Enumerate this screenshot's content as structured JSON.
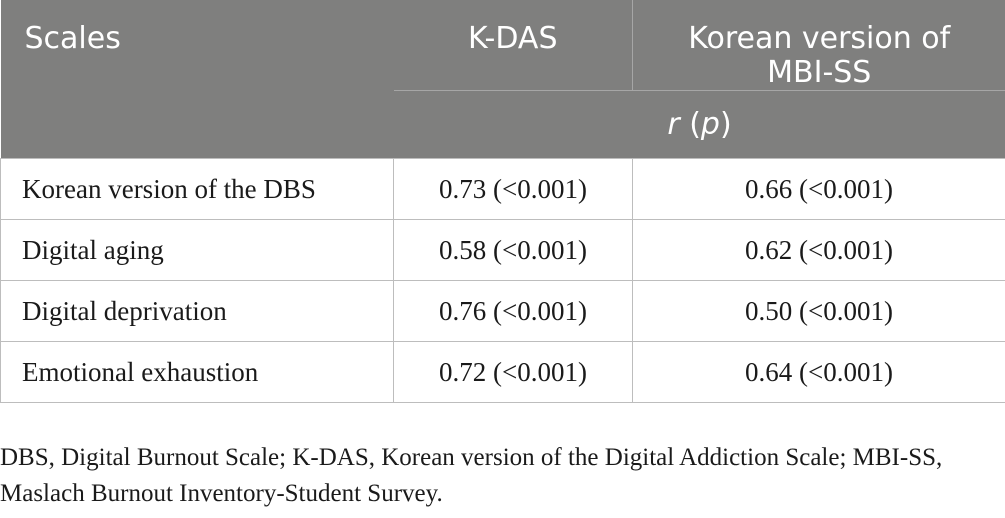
{
  "table": {
    "headers": {
      "scales": "Scales",
      "kdas": "K-DAS",
      "mbi_line1": "Korean version of",
      "mbi_line2": "MBI-SS",
      "stat_r": "r",
      "stat_open": " (",
      "stat_p": "p",
      "stat_close": ")"
    },
    "rows": [
      {
        "label": "Korean version of the DBS",
        "kdas": "0.73 (<0.001)",
        "mbi": "0.66 (<0.001)"
      },
      {
        "label": "Digital aging",
        "kdas": "0.58 (<0.001)",
        "mbi": "0.62 (<0.001)"
      },
      {
        "label": "Digital deprivation",
        "kdas": "0.76 (<0.001)",
        "mbi": "0.50 (<0.001)"
      },
      {
        "label": "Emotional exhaustion",
        "kdas": "0.72 (<0.001)",
        "mbi": "0.64 (<0.001)"
      }
    ]
  },
  "footnote": {
    "line1": "DBS, Digital Burnout Scale; K-DAS, Korean version of the Digital Addiction Scale; MBI-SS,",
    "line2": "Maslach Burnout Inventory-Student Survey."
  },
  "colors": {
    "header_bg": "#7f7f7e",
    "header_text": "#ffffff",
    "border": "#bdbdbd"
  }
}
